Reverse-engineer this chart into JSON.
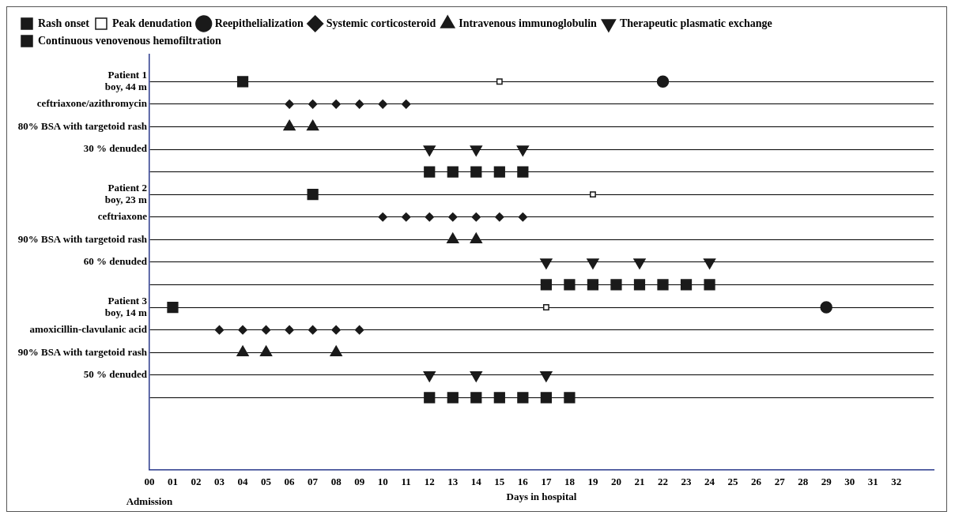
{
  "chart_data": {
    "type": "scatter",
    "orientation": "horizontal",
    "xlabel": "Days in hospital",
    "legend": "top",
    "grid": "y",
    "categories": [
      "Patient 1\nboy, 44 m",
      "ceftriaxone/azithromycin",
      "80% BSA with targetoid rash",
      "30 % denuded",
      null,
      "Patient 2\nboy, 23 m",
      "ceftriaxone",
      "90% BSA with targetoid rash",
      "60 % denuded",
      null,
      "Patient 3\nboy, 14 m",
      "amoxicillin-clavulanic acid",
      "90% BSA with targetoid rash",
      "50 % denuded",
      null
    ],
    "xlim": [
      0,
      33.6
    ],
    "xticks": [
      {
        "value": 0,
        "label": "00"
      },
      {
        "value": 1,
        "label": "01"
      },
      {
        "value": 2,
        "label": "02"
      },
      {
        "value": 3,
        "label": "03"
      },
      {
        "value": 4,
        "label": "04"
      },
      {
        "value": 5,
        "label": "05"
      },
      {
        "value": 6,
        "label": "06"
      },
      {
        "value": 7,
        "label": "07"
      },
      {
        "value": 8,
        "label": "08"
      },
      {
        "value": 9,
        "label": "09"
      },
      10,
      11,
      12,
      13,
      14,
      15,
      16,
      17,
      18,
      19,
      20,
      21,
      22,
      23,
      24,
      25,
      26,
      27,
      28,
      29,
      30,
      31,
      32
    ],
    "annotations": [
      "Admission"
    ],
    "series": [
      {
        "name": "Rash onset",
        "color": "#1a1a1a",
        "marker": "square",
        "values": [
          4,
          null,
          null,
          null,
          null,
          7,
          null,
          null,
          null,
          null,
          1,
          null,
          null,
          null,
          null
        ]
      },
      {
        "name": "Peak denudation",
        "color": "#1a1a1a",
        "marker": "square-open",
        "values": [
          15,
          null,
          null,
          null,
          null,
          19,
          null,
          null,
          null,
          null,
          17,
          null,
          null,
          null,
          null
        ]
      },
      {
        "name": "Reepithelialization",
        "color": "#1a1a1a",
        "marker": "circle",
        "values": [
          22,
          null,
          null,
          null,
          null,
          null,
          null,
          null,
          null,
          null,
          29,
          null,
          null,
          null,
          null
        ]
      },
      {
        "name": "Systemic corticosteroid",
        "color": "#1a1a1a",
        "marker": "diamond",
        "values": [
          null,
          6,
          null,
          null,
          null,
          null,
          10,
          null,
          null,
          null,
          null,
          3,
          null,
          null,
          null
        ]
      },
      {
        "color": "#1a1a1a",
        "marker": "diamond",
        "values": [
          null,
          7,
          null,
          null,
          null,
          null,
          11,
          null,
          null,
          null,
          null,
          4,
          null,
          null,
          null
        ]
      },
      {
        "color": "#1a1a1a",
        "marker": "diamond",
        "values": [
          null,
          8,
          null,
          null,
          null,
          null,
          12,
          null,
          null,
          null,
          null,
          5,
          null,
          null,
          null
        ]
      },
      {
        "color": "#1a1a1a",
        "marker": "diamond",
        "values": [
          null,
          9,
          null,
          null,
          null,
          null,
          13,
          null,
          null,
          null,
          null,
          6,
          null,
          null,
          null
        ]
      },
      {
        "color": "#1a1a1a",
        "marker": "diamond",
        "values": [
          null,
          10,
          null,
          null,
          null,
          null,
          14,
          null,
          null,
          null,
          null,
          7,
          null,
          null,
          null
        ]
      },
      {
        "color": "#1a1a1a",
        "marker": "diamond",
        "values": [
          null,
          11,
          null,
          null,
          null,
          null,
          15,
          null,
          null,
          null,
          null,
          8,
          null,
          null,
          null
        ]
      },
      {
        "color": "#1a1a1a",
        "marker": "diamond",
        "values": [
          null,
          null,
          null,
          null,
          null,
          null,
          16,
          null,
          null,
          null,
          null,
          9,
          null,
          null,
          null
        ]
      },
      {
        "name": "Intravenous immunoglobulin",
        "color": "#1a1a1a",
        "marker": "triangle",
        "values": [
          null,
          null,
          6,
          null,
          null,
          null,
          null,
          13,
          null,
          null,
          null,
          null,
          4,
          null,
          null
        ]
      },
      {
        "color": "#1a1a1a",
        "marker": "triangle",
        "values": [
          null,
          null,
          7,
          null,
          null,
          null,
          null,
          14,
          null,
          null,
          null,
          null,
          5,
          null,
          null
        ]
      },
      {
        "color": "#1a1a1a",
        "marker": "triangle",
        "values": [
          null,
          null,
          null,
          null,
          null,
          null,
          null,
          null,
          null,
          null,
          null,
          null,
          8,
          null,
          null
        ]
      },
      {
        "name": "Therapeutic plasmatic exchange",
        "color": "#1a1a1a",
        "marker": "triangle-down",
        "values": [
          null,
          null,
          null,
          12,
          null,
          null,
          null,
          null,
          17,
          null,
          null,
          null,
          null,
          12,
          null
        ]
      },
      {
        "color": "#1a1a1a",
        "marker": "triangle-down",
        "values": [
          null,
          null,
          null,
          14,
          null,
          null,
          null,
          null,
          19,
          null,
          null,
          null,
          null,
          14,
          null
        ]
      },
      {
        "color": "#1a1a1a",
        "marker": "triangle-down",
        "values": [
          null,
          null,
          null,
          16,
          null,
          null,
          null,
          null,
          21,
          null,
          null,
          null,
          null,
          17,
          null
        ]
      },
      {
        "color": "#1a1a1a",
        "marker": "triangle-down",
        "values": [
          null,
          null,
          null,
          null,
          null,
          null,
          null,
          null,
          24,
          null,
          null,
          null,
          null,
          null,
          null
        ]
      },
      {
        "name": "Continuous venovenous hemofiltration",
        "color": "#1a1a1a",
        "marker": "square",
        "values": [
          null,
          null,
          null,
          null,
          12,
          null,
          null,
          null,
          null,
          17,
          null,
          null,
          null,
          null,
          12
        ]
      },
      {
        "color": "#1a1a1a",
        "marker": "square",
        "values": [
          null,
          null,
          null,
          null,
          13,
          null,
          null,
          null,
          null,
          18,
          null,
          null,
          null,
          null,
          13
        ]
      },
      {
        "color": "#1a1a1a",
        "marker": "square",
        "values": [
          null,
          null,
          null,
          null,
          14,
          null,
          null,
          null,
          null,
          19,
          null,
          null,
          null,
          null,
          14
        ]
      },
      {
        "color": "#1a1a1a",
        "marker": "square",
        "values": [
          null,
          null,
          null,
          null,
          15,
          null,
          null,
          null,
          null,
          20,
          null,
          null,
          null,
          null,
          15
        ]
      },
      {
        "color": "#1a1a1a",
        "marker": "square",
        "values": [
          null,
          null,
          null,
          null,
          16,
          null,
          null,
          null,
          null,
          21,
          null,
          null,
          null,
          null,
          16
        ]
      },
      {
        "color": "#1a1a1a",
        "marker": "square",
        "values": [
          null,
          null,
          null,
          null,
          null,
          null,
          null,
          null,
          null,
          22,
          null,
          null,
          null,
          null,
          17
        ]
      },
      {
        "color": "#1a1a1a",
        "marker": "square",
        "values": [
          null,
          null,
          null,
          null,
          null,
          null,
          null,
          null,
          null,
          23,
          null,
          null,
          null,
          null,
          18
        ]
      },
      {
        "color": "#1a1a1a",
        "marker": "square",
        "values": [
          null,
          null,
          null,
          null,
          null,
          null,
          null,
          null,
          null,
          24,
          null,
          null,
          null,
          null,
          null
        ]
      }
    ]
  }
}
